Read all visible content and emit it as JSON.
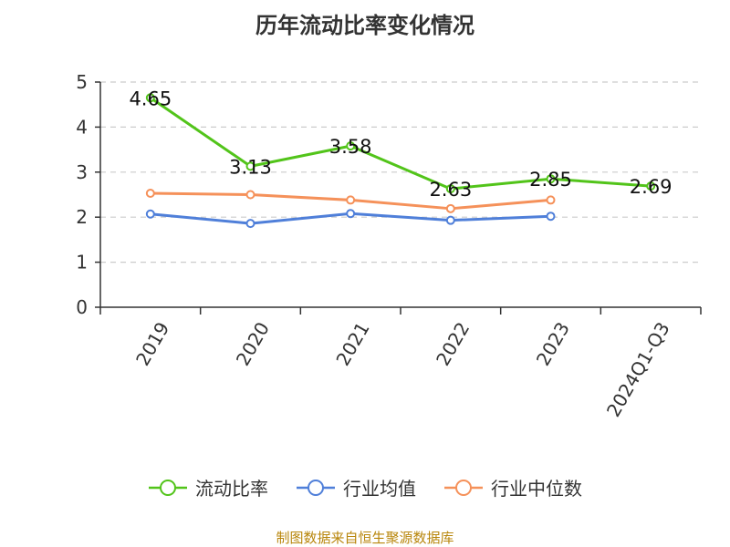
{
  "title": "历年流动比率变化情况",
  "footer": "制图数据来自恒生聚源数据库",
  "colors": {
    "current_ratio": "#52c41a",
    "industry_mean": "#4f7fd9",
    "industry_median": "#f5915a",
    "grid": "#cccccc",
    "axis": "#333333"
  },
  "chart_data": {
    "type": "line",
    "categories": [
      "2019",
      "2020",
      "2021",
      "2022",
      "2023",
      "2024Q1-Q3"
    ],
    "ylim": [
      0,
      5
    ],
    "yticks": [
      "0",
      "1",
      "2",
      "3",
      "4",
      "5"
    ],
    "grid": true,
    "legend_position": "bottom",
    "series": [
      {
        "name": "流动比率",
        "color_key": "current_ratio",
        "values": [
          4.65,
          3.13,
          3.58,
          2.63,
          2.85,
          2.69
        ],
        "labels": [
          "4.65",
          "3.13",
          "3.58",
          "2.63",
          "2.85",
          "2.69"
        ]
      },
      {
        "name": "行业均值",
        "color_key": "industry_mean",
        "values": [
          2.07,
          1.86,
          2.08,
          1.93,
          2.02,
          null
        ]
      },
      {
        "name": "行业中位数",
        "color_key": "industry_median",
        "values": [
          2.53,
          2.5,
          2.38,
          2.19,
          2.38,
          null
        ]
      }
    ]
  }
}
